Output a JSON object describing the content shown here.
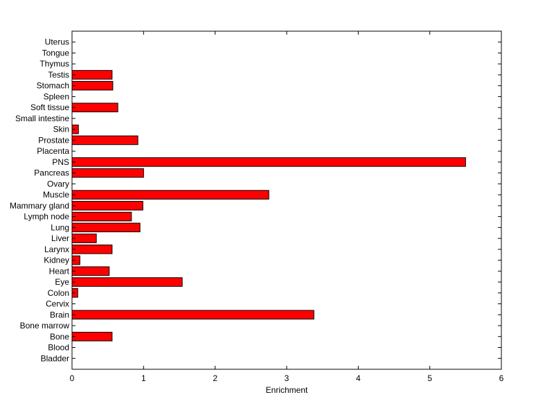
{
  "chart_data": {
    "type": "bar",
    "orientation": "horizontal",
    "title": "",
    "xlabel": "Enrichment",
    "ylabel": "",
    "xlim": [
      0,
      6
    ],
    "xticks": [
      "0",
      "1",
      "2",
      "3",
      "4",
      "5",
      "6"
    ],
    "grid": false,
    "legend": "none",
    "bar_color": "#ff0000",
    "categories": [
      "Bladder",
      "Blood",
      "Bone",
      "Bone marrow",
      "Brain",
      "Cervix",
      "Colon",
      "Eye",
      "Heart",
      "Kidney",
      "Larynx",
      "Liver",
      "Lung",
      "Lymph node",
      "Mammary gland",
      "Muscle",
      "Ovary",
      "Pancreas",
      "PNS",
      "Placenta",
      "Prostate",
      "Skin",
      "Small intestine",
      "Soft tissue",
      "Spleen",
      "Stomach",
      "Testis",
      "Thymus",
      "Tongue",
      "Uterus"
    ],
    "values": [
      0,
      0,
      0.56,
      0,
      3.38,
      0,
      0.08,
      1.54,
      0.52,
      0.11,
      0.56,
      0.34,
      0.95,
      0.83,
      0.99,
      2.75,
      0,
      1.0,
      5.5,
      0,
      0.92,
      0.09,
      0,
      0.64,
      0,
      0.57,
      0.56,
      0,
      0,
      0
    ]
  }
}
